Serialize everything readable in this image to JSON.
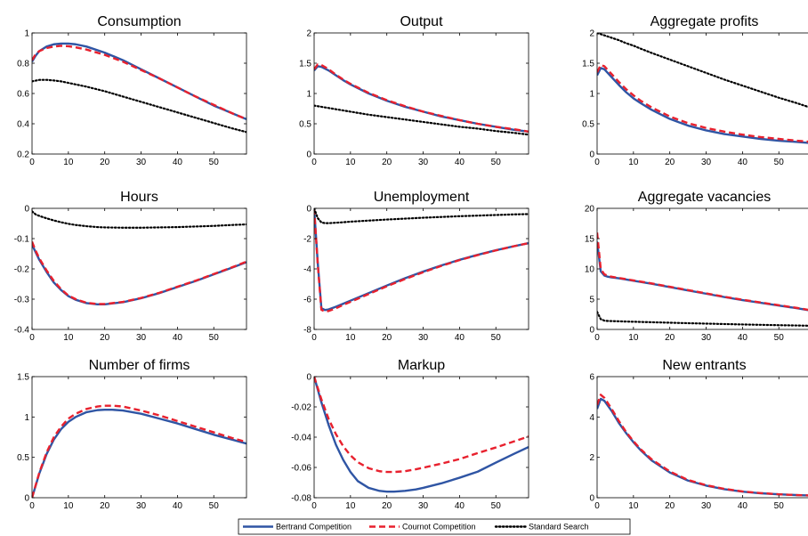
{
  "legend": {
    "placement": "bottom-center",
    "entries": [
      {
        "label": "Bertrand Competition",
        "color": "#2f55a4",
        "style": "solid"
      },
      {
        "label": "Cournot Competition",
        "color": "#e8212e",
        "style": "dashed"
      },
      {
        "label": "Standard Search",
        "color": "#000000",
        "style": "dotted"
      }
    ]
  },
  "chart_data": [
    {
      "type": "line",
      "title": "Consumption",
      "xlim": [
        0,
        59
      ],
      "ylim": [
        0.2,
        1
      ],
      "xticks": [
        0,
        10,
        20,
        30,
        40,
        50
      ],
      "yticks": [
        0.2,
        0.4,
        0.6,
        0.8,
        1
      ],
      "ytick_labels": [
        "0.2",
        "0.4",
        "0.6",
        "0.8",
        "1"
      ],
      "x": [
        0,
        1,
        2,
        4,
        6,
        8,
        10,
        12,
        15,
        20,
        25,
        30,
        35,
        40,
        45,
        50,
        55,
        59
      ],
      "series": [
        {
          "name": "Bertrand Competition",
          "values": [
            0.81,
            0.85,
            0.88,
            0.91,
            0.925,
            0.93,
            0.93,
            0.925,
            0.91,
            0.87,
            0.82,
            0.76,
            0.7,
            0.64,
            0.58,
            0.52,
            0.47,
            0.43
          ]
        },
        {
          "name": "Cournot Competition",
          "values": [
            0.82,
            0.86,
            0.88,
            0.9,
            0.91,
            0.915,
            0.912,
            0.905,
            0.89,
            0.855,
            0.81,
            0.755,
            0.7,
            0.64,
            0.58,
            0.525,
            0.47,
            0.43
          ]
        },
        {
          "name": "Standard Search",
          "values": [
            0.68,
            0.685,
            0.69,
            0.69,
            0.686,
            0.68,
            0.67,
            0.66,
            0.645,
            0.615,
            0.58,
            0.545,
            0.51,
            0.475,
            0.44,
            0.405,
            0.37,
            0.345
          ]
        }
      ]
    },
    {
      "type": "line",
      "title": "Output",
      "xlim": [
        0,
        59
      ],
      "ylim": [
        0,
        2
      ],
      "xticks": [
        0,
        10,
        20,
        30,
        40,
        50
      ],
      "yticks": [
        0,
        0.5,
        1,
        1.5,
        2
      ],
      "ytick_labels": [
        "0",
        "0.5",
        "1",
        "1.5",
        "2"
      ],
      "x": [
        0,
        1,
        2,
        4,
        6,
        8,
        10,
        12,
        15,
        20,
        25,
        30,
        35,
        40,
        45,
        50,
        55,
        59
      ],
      "series": [
        {
          "name": "Bertrand Competition",
          "values": [
            1.38,
            1.45,
            1.44,
            1.38,
            1.3,
            1.22,
            1.15,
            1.09,
            1.0,
            0.88,
            0.78,
            0.7,
            0.62,
            0.56,
            0.5,
            0.45,
            0.4,
            0.37
          ]
        },
        {
          "name": "Cournot Competition",
          "values": [
            1.4,
            1.48,
            1.47,
            1.4,
            1.31,
            1.23,
            1.16,
            1.1,
            1.01,
            0.89,
            0.79,
            0.7,
            0.63,
            0.56,
            0.5,
            0.45,
            0.41,
            0.37
          ]
        },
        {
          "name": "Standard Search",
          "values": [
            0.8,
            0.79,
            0.78,
            0.76,
            0.74,
            0.72,
            0.7,
            0.68,
            0.65,
            0.61,
            0.57,
            0.53,
            0.49,
            0.45,
            0.42,
            0.38,
            0.35,
            0.32
          ]
        }
      ]
    },
    {
      "type": "line",
      "title": "Aggregate profits",
      "xlim": [
        0,
        59
      ],
      "ylim": [
        0,
        2
      ],
      "xticks": [
        0,
        10,
        20,
        30,
        40,
        50
      ],
      "yticks": [
        0,
        0.5,
        1,
        1.5,
        2
      ],
      "ytick_labels": [
        "0",
        "0.5",
        "1",
        "1.5",
        "2"
      ],
      "x": [
        0,
        1,
        2,
        4,
        6,
        8,
        10,
        12,
        15,
        20,
        25,
        30,
        35,
        40,
        45,
        50,
        55,
        59
      ],
      "series": [
        {
          "name": "Bertrand Competition",
          "values": [
            1.3,
            1.42,
            1.4,
            1.27,
            1.14,
            1.02,
            0.92,
            0.84,
            0.73,
            0.58,
            0.47,
            0.39,
            0.33,
            0.29,
            0.25,
            0.22,
            0.2,
            0.18
          ]
        },
        {
          "name": "Cournot Competition",
          "values": [
            1.35,
            1.47,
            1.45,
            1.32,
            1.19,
            1.07,
            0.97,
            0.88,
            0.77,
            0.62,
            0.51,
            0.43,
            0.37,
            0.32,
            0.28,
            0.25,
            0.22,
            0.2
          ]
        },
        {
          "name": "Standard Search",
          "values": [
            2.0,
            1.98,
            1.96,
            1.92,
            1.88,
            1.83,
            1.79,
            1.74,
            1.67,
            1.56,
            1.45,
            1.34,
            1.23,
            1.13,
            1.03,
            0.93,
            0.84,
            0.76
          ]
        }
      ]
    },
    {
      "type": "line",
      "title": "Hours",
      "xlim": [
        0,
        59
      ],
      "ylim": [
        -0.4,
        0
      ],
      "xticks": [
        0,
        10,
        20,
        30,
        40,
        50
      ],
      "yticks": [
        -0.4,
        -0.3,
        -0.2,
        -0.1,
        0
      ],
      "ytick_labels": [
        "-0.4",
        "-0.3",
        "-0.2",
        "-0.1",
        "0"
      ],
      "x": [
        0,
        1,
        2,
        4,
        6,
        8,
        10,
        12,
        15,
        18,
        20,
        25,
        30,
        35,
        40,
        45,
        50,
        55,
        59
      ],
      "series": [
        {
          "name": "Bertrand Competition",
          "values": [
            -0.12,
            -0.145,
            -0.17,
            -0.21,
            -0.245,
            -0.27,
            -0.29,
            -0.302,
            -0.313,
            -0.317,
            -0.317,
            -0.31,
            -0.297,
            -0.28,
            -0.26,
            -0.24,
            -0.218,
            -0.196,
            -0.178
          ]
        },
        {
          "name": "Cournot Competition",
          "values": [
            -0.11,
            -0.14,
            -0.165,
            -0.205,
            -0.24,
            -0.267,
            -0.288,
            -0.3,
            -0.312,
            -0.316,
            -0.316,
            -0.309,
            -0.296,
            -0.279,
            -0.259,
            -0.239,
            -0.217,
            -0.195,
            -0.176
          ]
        },
        {
          "name": "Standard Search",
          "values": [
            -0.01,
            -0.02,
            -0.025,
            -0.033,
            -0.04,
            -0.046,
            -0.051,
            -0.055,
            -0.059,
            -0.062,
            -0.063,
            -0.064,
            -0.064,
            -0.063,
            -0.062,
            -0.06,
            -0.058,
            -0.055,
            -0.053
          ]
        }
      ]
    },
    {
      "type": "line",
      "title": "Unemployment",
      "xlim": [
        0,
        59
      ],
      "ylim": [
        -8,
        0
      ],
      "xticks": [
        0,
        10,
        20,
        30,
        40,
        50
      ],
      "yticks": [
        -8,
        -6,
        -4,
        -2,
        0
      ],
      "ytick_labels": [
        "-8",
        "-6",
        "-4",
        "-2",
        "0"
      ],
      "x": [
        0,
        1,
        2,
        3,
        4,
        6,
        8,
        10,
        15,
        20,
        25,
        30,
        35,
        40,
        45,
        50,
        55,
        59
      ],
      "series": [
        {
          "name": "Bertrand Competition",
          "values": [
            0,
            -3.6,
            -6.6,
            -6.72,
            -6.68,
            -6.5,
            -6.3,
            -6.1,
            -5.6,
            -5.1,
            -4.62,
            -4.18,
            -3.77,
            -3.4,
            -3.07,
            -2.77,
            -2.5,
            -2.3
          ]
        },
        {
          "name": "Cournot Competition",
          "values": [
            0,
            -3.7,
            -6.7,
            -6.82,
            -6.78,
            -6.6,
            -6.38,
            -6.18,
            -5.66,
            -5.15,
            -4.67,
            -4.22,
            -3.8,
            -3.42,
            -3.09,
            -2.78,
            -2.5,
            -2.3
          ]
        },
        {
          "name": "Standard Search",
          "values": [
            0,
            -0.65,
            -0.93,
            -0.98,
            -0.98,
            -0.95,
            -0.92,
            -0.88,
            -0.81,
            -0.74,
            -0.68,
            -0.62,
            -0.57,
            -0.52,
            -0.48,
            -0.44,
            -0.4,
            -0.38
          ]
        }
      ]
    },
    {
      "type": "line",
      "title": "Aggregate vacancies",
      "xlim": [
        0,
        59
      ],
      "ylim": [
        0,
        20
      ],
      "xticks": [
        0,
        10,
        20,
        30,
        40,
        50
      ],
      "yticks": [
        0,
        5,
        10,
        15,
        20
      ],
      "ytick_labels": [
        "0",
        "5",
        "10",
        "15",
        "20"
      ],
      "x": [
        0,
        1,
        2,
        3,
        4,
        6,
        8,
        10,
        15,
        20,
        25,
        30,
        35,
        40,
        45,
        50,
        55,
        59
      ],
      "series": [
        {
          "name": "Bertrand Competition",
          "values": [
            14.5,
            9.6,
            8.9,
            8.7,
            8.6,
            8.45,
            8.25,
            8.05,
            7.55,
            7.0,
            6.45,
            5.9,
            5.35,
            4.85,
            4.4,
            3.95,
            3.5,
            3.1
          ]
        },
        {
          "name": "Cournot Competition",
          "values": [
            16.0,
            10.0,
            9.1,
            8.85,
            8.7,
            8.5,
            8.3,
            8.1,
            7.6,
            7.05,
            6.5,
            5.95,
            5.4,
            4.9,
            4.45,
            4.0,
            3.55,
            3.15
          ]
        },
        {
          "name": "Standard Search",
          "values": [
            2.9,
            1.7,
            1.45,
            1.4,
            1.38,
            1.34,
            1.3,
            1.27,
            1.19,
            1.11,
            1.03,
            0.96,
            0.89,
            0.82,
            0.76,
            0.7,
            0.65,
            0.6
          ]
        }
      ]
    },
    {
      "type": "line",
      "title": "Number of firms",
      "xlim": [
        0,
        59
      ],
      "ylim": [
        0,
        1.5
      ],
      "xticks": [
        0,
        10,
        20,
        30,
        40,
        50
      ],
      "yticks": [
        0,
        0.5,
        1,
        1.5
      ],
      "ytick_labels": [
        "0",
        "0.5",
        "1",
        "1.5"
      ],
      "x": [
        0,
        2,
        4,
        6,
        8,
        10,
        12,
        15,
        18,
        20,
        22,
        25,
        30,
        35,
        40,
        45,
        50,
        55,
        59
      ],
      "series": [
        {
          "name": "Bertrand Competition",
          "values": [
            0,
            0.3,
            0.54,
            0.72,
            0.85,
            0.94,
            1.0,
            1.06,
            1.085,
            1.09,
            1.09,
            1.08,
            1.04,
            0.98,
            0.92,
            0.85,
            0.78,
            0.72,
            0.67
          ]
        },
        {
          "name": "Cournot Competition",
          "values": [
            0,
            0.31,
            0.56,
            0.75,
            0.88,
            0.98,
            1.04,
            1.1,
            1.13,
            1.14,
            1.14,
            1.13,
            1.08,
            1.02,
            0.95,
            0.88,
            0.81,
            0.74,
            0.69
          ]
        }
      ]
    },
    {
      "type": "line",
      "title": "Markup",
      "xlim": [
        0,
        59
      ],
      "ylim": [
        -0.08,
        0
      ],
      "xticks": [
        0,
        10,
        20,
        30,
        40,
        50
      ],
      "yticks": [
        -0.08,
        -0.06,
        -0.04,
        -0.02,
        0
      ],
      "ytick_labels": [
        "-0.08",
        "-0.06",
        "-0.04",
        "-0.02",
        "0"
      ],
      "x": [
        0,
        2,
        4,
        6,
        8,
        10,
        12,
        15,
        18,
        20,
        22,
        25,
        28,
        30,
        35,
        40,
        45,
        50,
        55,
        59
      ],
      "series": [
        {
          "name": "Bertrand Competition",
          "values": [
            0,
            -0.017,
            -0.032,
            -0.045,
            -0.055,
            -0.063,
            -0.069,
            -0.0735,
            -0.0755,
            -0.076,
            -0.076,
            -0.0755,
            -0.0745,
            -0.0735,
            -0.0705,
            -0.0668,
            -0.0628,
            -0.0568,
            -0.051,
            -0.0465
          ]
        },
        {
          "name": "Cournot Competition",
          "values": [
            0,
            -0.015,
            -0.028,
            -0.038,
            -0.046,
            -0.052,
            -0.0565,
            -0.0605,
            -0.0625,
            -0.063,
            -0.063,
            -0.0625,
            -0.0612,
            -0.0602,
            -0.0575,
            -0.0545,
            -0.0505,
            -0.0468,
            -0.0428,
            -0.0395
          ]
        }
      ]
    },
    {
      "type": "line",
      "title": "New entrants",
      "xlim": [
        0,
        59
      ],
      "ylim": [
        0,
        6
      ],
      "xticks": [
        0,
        10,
        20,
        30,
        40,
        50
      ],
      "yticks": [
        0,
        2,
        4,
        6
      ],
      "ytick_labels": [
        "0",
        "2",
        "4",
        "6"
      ],
      "x": [
        0,
        1,
        2,
        4,
        6,
        8,
        10,
        12,
        15,
        20,
        25,
        30,
        35,
        40,
        45,
        50,
        55,
        59
      ],
      "series": [
        {
          "name": "Bertrand Competition",
          "values": [
            4.4,
            4.9,
            4.8,
            4.3,
            3.7,
            3.2,
            2.75,
            2.35,
            1.85,
            1.25,
            0.85,
            0.6,
            0.42,
            0.3,
            0.22,
            0.17,
            0.13,
            0.11
          ]
        },
        {
          "name": "Cournot Competition",
          "values": [
            4.6,
            5.1,
            4.95,
            4.4,
            3.8,
            3.25,
            2.8,
            2.4,
            1.9,
            1.3,
            0.88,
            0.62,
            0.44,
            0.31,
            0.23,
            0.17,
            0.13,
            0.11
          ]
        }
      ]
    }
  ]
}
